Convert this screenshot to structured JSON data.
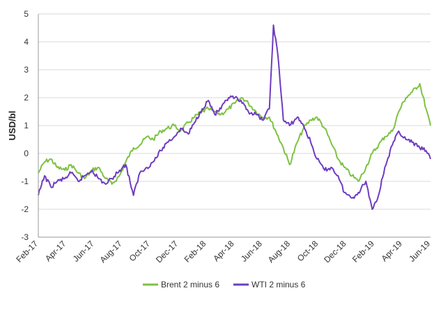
{
  "chart_data": {
    "type": "line",
    "ylabel": "USD/bl",
    "ylim": [
      -3,
      5
    ],
    "yticks": [
      5,
      4,
      3,
      2,
      1,
      0,
      -1,
      -2,
      -3
    ],
    "grid": "horizontal",
    "legend": "bottom-center",
    "x_tick_labels": [
      "Feb-17",
      "Apr-17",
      "Jun-17",
      "Aug-17",
      "Oct-17",
      "Dec-17",
      "Feb-18",
      "Apr-18",
      "Jun-18",
      "Aug-18",
      "Oct-18",
      "Dec-18",
      "Feb-19",
      "Apr-19",
      "Jun-19"
    ],
    "x_range": [
      "2017-02-01",
      "2019-06-25"
    ],
    "series": [
      {
        "name": "Brent 2 minus 6",
        "color": "#7dc242",
        "x": [
          "2017-02-01",
          "2017-02-15",
          "2017-03-01",
          "2017-03-15",
          "2017-04-01",
          "2017-04-15",
          "2017-05-01",
          "2017-05-15",
          "2017-06-01",
          "2017-06-15",
          "2017-07-01",
          "2017-07-15",
          "2017-08-01",
          "2017-08-15",
          "2017-09-01",
          "2017-09-15",
          "2017-10-01",
          "2017-10-15",
          "2017-11-01",
          "2017-11-15",
          "2017-12-01",
          "2017-12-15",
          "2018-01-01",
          "2018-01-15",
          "2018-02-01",
          "2018-02-15",
          "2018-03-01",
          "2018-03-15",
          "2018-04-01",
          "2018-04-15",
          "2018-05-01",
          "2018-05-15",
          "2018-06-01",
          "2018-06-15",
          "2018-07-01",
          "2018-07-15",
          "2018-08-01",
          "2018-08-15",
          "2018-09-01",
          "2018-09-15",
          "2018-10-01",
          "2018-10-15",
          "2018-11-01",
          "2018-11-15",
          "2018-12-01",
          "2018-12-15",
          "2019-01-01",
          "2019-01-15",
          "2019-02-01",
          "2019-02-15",
          "2019-03-01",
          "2019-03-15",
          "2019-04-01",
          "2019-04-15",
          "2019-05-01",
          "2019-05-15",
          "2019-06-01",
          "2019-06-15",
          "2019-06-25"
        ],
        "values": [
          -0.7,
          -0.3,
          -0.2,
          -0.5,
          -0.6,
          -0.4,
          -0.7,
          -0.9,
          -0.6,
          -0.5,
          -0.9,
          -1.1,
          -0.8,
          -0.3,
          0.2,
          0.3,
          0.6,
          0.5,
          0.8,
          0.9,
          1.0,
          0.8,
          1.1,
          1.3,
          1.5,
          1.6,
          1.5,
          1.4,
          1.6,
          1.8,
          2.0,
          1.8,
          1.5,
          1.3,
          1.3,
          0.8,
          0.2,
          -0.4,
          0.4,
          0.9,
          1.2,
          1.3,
          0.9,
          0.4,
          -0.2,
          -0.5,
          -0.8,
          -1.0,
          -0.5,
          0.0,
          0.3,
          0.6,
          0.8,
          1.5,
          2.0,
          2.2,
          2.5,
          1.6,
          1.0
        ]
      },
      {
        "name": "WTI 2 minus 6",
        "color": "#6e3cbf",
        "x": [
          "2017-02-01",
          "2017-02-15",
          "2017-03-01",
          "2017-03-15",
          "2017-04-01",
          "2017-04-15",
          "2017-05-01",
          "2017-05-15",
          "2017-06-01",
          "2017-06-15",
          "2017-07-01",
          "2017-07-15",
          "2017-08-01",
          "2017-08-15",
          "2017-09-01",
          "2017-09-15",
          "2017-10-01",
          "2017-10-15",
          "2017-11-01",
          "2017-11-15",
          "2017-12-01",
          "2017-12-15",
          "2018-01-01",
          "2018-01-15",
          "2018-02-01",
          "2018-02-15",
          "2018-03-01",
          "2018-03-15",
          "2018-04-01",
          "2018-04-15",
          "2018-05-01",
          "2018-05-15",
          "2018-06-01",
          "2018-06-15",
          "2018-07-01",
          "2018-07-10",
          "2018-07-20",
          "2018-08-01",
          "2018-08-15",
          "2018-09-01",
          "2018-09-15",
          "2018-10-01",
          "2018-10-15",
          "2018-11-01",
          "2018-11-15",
          "2018-12-01",
          "2018-12-15",
          "2019-01-01",
          "2019-01-15",
          "2019-02-01",
          "2019-02-15",
          "2019-03-01",
          "2019-03-15",
          "2019-04-01",
          "2019-04-15",
          "2019-05-01",
          "2019-05-15",
          "2019-06-01",
          "2019-06-15",
          "2019-06-25"
        ],
        "values": [
          -1.5,
          -0.8,
          -1.2,
          -1.0,
          -0.9,
          -0.7,
          -1.0,
          -0.8,
          -0.6,
          -0.9,
          -1.1,
          -0.9,
          -0.6,
          -0.4,
          -1.5,
          -0.7,
          -0.5,
          -0.3,
          0.1,
          0.4,
          0.6,
          0.9,
          0.7,
          1.1,
          1.6,
          1.9,
          1.4,
          1.6,
          2.0,
          2.0,
          1.8,
          1.5,
          1.4,
          1.2,
          1.6,
          4.6,
          3.5,
          1.2,
          1.0,
          1.3,
          1.0,
          0.4,
          -0.2,
          -0.6,
          -0.5,
          -0.8,
          -1.4,
          -1.6,
          -1.4,
          -1.0,
          -2.0,
          -1.5,
          -0.5,
          0.3,
          0.8,
          0.5,
          0.4,
          0.2,
          0.1,
          -0.2
        ]
      }
    ]
  }
}
